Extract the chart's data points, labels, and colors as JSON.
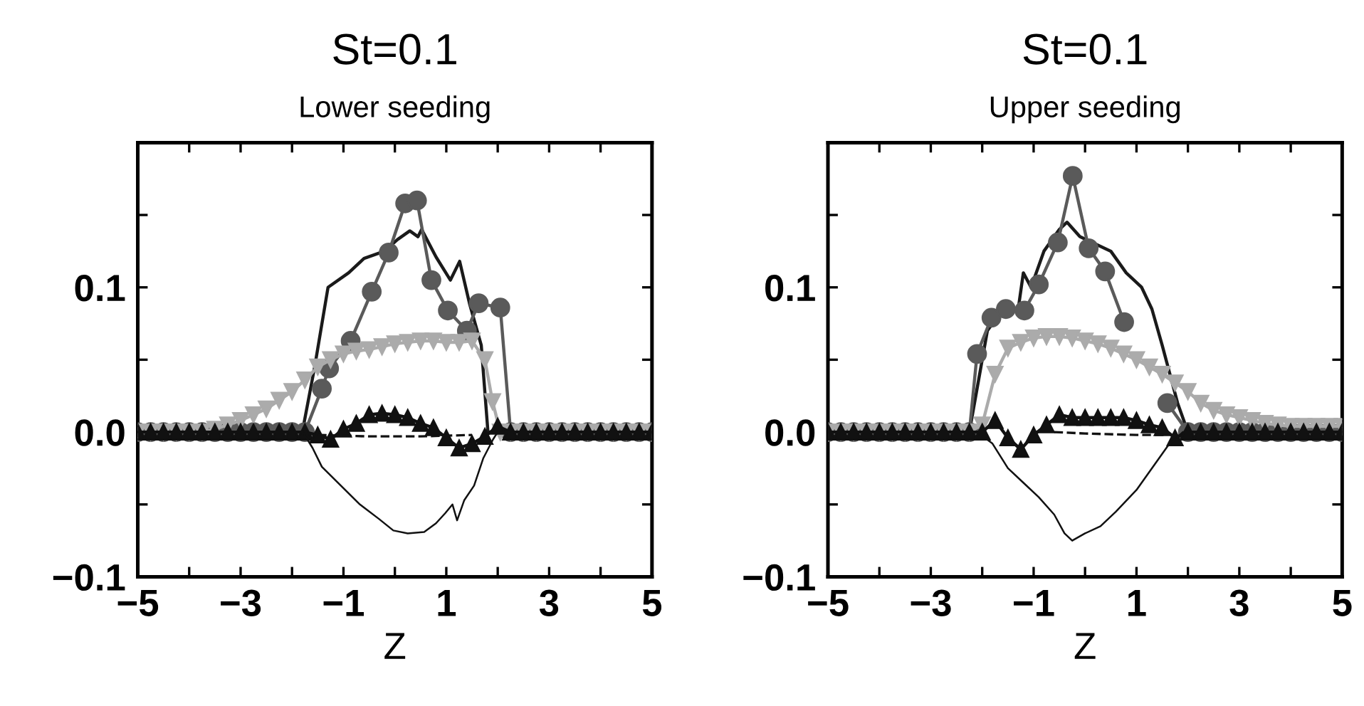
{
  "chart_data": [
    {
      "type": "line",
      "title": "St=0.1",
      "subtitle": "Lower seeding",
      "xlabel": "Z",
      "xlim": [
        -5,
        5
      ],
      "ylim": [
        -0.1,
        0.2
      ],
      "xticks": [
        {
          "value": -5,
          "label": "−5"
        },
        {
          "value": -4,
          "label": null
        },
        {
          "value": -3,
          "label": "−3"
        },
        {
          "value": -2,
          "label": null
        },
        {
          "value": -1,
          "label": "−1"
        },
        {
          "value": 0,
          "label": null
        },
        {
          "value": 1,
          "label": "1"
        },
        {
          "value": 2,
          "label": null
        },
        {
          "value": 3,
          "label": "3"
        },
        {
          "value": 4,
          "label": null
        },
        {
          "value": 5,
          "label": "5"
        }
      ],
      "yticks": [
        {
          "value": -0.1,
          "label": "−0.1"
        },
        {
          "value": -0.05,
          "label": null
        },
        {
          "value": 0,
          "label": "0.0"
        },
        {
          "value": 0.05,
          "label": null
        },
        {
          "value": 0.1,
          "label": "0.1"
        },
        {
          "value": 0.15,
          "label": null
        }
      ],
      "grid": false,
      "legend": false,
      "series": [
        {
          "color": "#1a1a1a",
          "marker": "none",
          "line_style": "solid",
          "x": [
            -5,
            -1.8,
            -1.56,
            -1.3,
            -0.9,
            -0.6,
            -0.2,
            0.05,
            0.29,
            0.45,
            0.52,
            0.8,
            1.08,
            1.26,
            1.45,
            1.68,
            1.81,
            5
          ],
          "values": [
            0,
            0,
            0.045,
            0.1,
            0.11,
            0.12,
            0.125,
            0.133,
            0.139,
            0.135,
            0.14,
            0.121,
            0.105,
            0.118,
            0.089,
            0.06,
            0,
            0
          ]
        },
        {
          "color": "#5a5a5a",
          "marker": "circle",
          "line_style": "solid",
          "x": [
            -5,
            -4.75,
            -4.5,
            -4.25,
            -4,
            -3.75,
            -3.5,
            -3.25,
            -3,
            -2.75,
            -2.5,
            -2.25,
            -2,
            -1.75,
            -1.42,
            -1.28,
            -0.86,
            -0.45,
            -0.12,
            0.2,
            0.43,
            0.71,
            1.03,
            1.4,
            1.63,
            2.05,
            2.25,
            2.5,
            2.75,
            3,
            3.25,
            3.5,
            3.75,
            4,
            4.25,
            4.5,
            4.75,
            5
          ],
          "values": [
            0,
            0,
            0,
            0,
            0,
            0,
            0,
            0,
            0,
            0,
            0,
            0,
            0,
            0,
            0.03,
            0.044,
            0.063,
            0.097,
            0.124,
            0.158,
            0.16,
            0.105,
            0.084,
            0.07,
            0.089,
            0.086,
            0,
            0,
            0,
            0,
            0,
            0,
            0,
            0,
            0,
            0,
            0,
            0
          ]
        },
        {
          "color": "#ababab",
          "marker": "triangle_down",
          "line_style": "solid",
          "x": [
            -5,
            -4.75,
            -4.5,
            -4.25,
            -4,
            -3.75,
            -3.5,
            -3.25,
            -3,
            -2.75,
            -2.5,
            -2.25,
            -2,
            -1.75,
            -1.5,
            -1.25,
            -1,
            -0.75,
            -0.5,
            -0.25,
            0,
            0.25,
            0.5,
            0.75,
            1,
            1.25,
            1.5,
            1.75,
            1.9,
            2.05,
            2.25,
            2.5,
            2.75,
            3,
            3.25,
            3.5,
            3.75,
            4,
            4.25,
            4.5,
            4.75,
            5
          ],
          "values": [
            0,
            0,
            0,
            0,
            0,
            0,
            0.002,
            0.005,
            0.008,
            0.012,
            0.016,
            0.022,
            0.028,
            0.036,
            0.045,
            0.05,
            0.054,
            0.056,
            0.057,
            0.059,
            0.061,
            0.062,
            0.063,
            0.063,
            0.062,
            0.062,
            0.063,
            0.05,
            0.021,
            0,
            0,
            0,
            0,
            0,
            0,
            0,
            0,
            0,
            0,
            0,
            0,
            0
          ]
        },
        {
          "color": "#111111",
          "marker": "triangle",
          "line_style": "solid",
          "x": [
            -5,
            -4.75,
            -4.5,
            -4.25,
            -4,
            -3.75,
            -3.5,
            -3.25,
            -3,
            -2.75,
            -2.5,
            -2.25,
            -2,
            -1.75,
            -1.5,
            -1.25,
            -1,
            -0.75,
            -0.5,
            -0.25,
            0,
            0.25,
            0.5,
            0.75,
            1,
            1.25,
            1.5,
            1.75,
            2,
            2.25,
            2.5,
            2.75,
            3,
            3.25,
            3.5,
            3.75,
            4,
            4.25,
            4.5,
            4.75,
            5
          ],
          "values": [
            0,
            0,
            0,
            0,
            0,
            0,
            0,
            0,
            0,
            0,
            0,
            0,
            0,
            0,
            -0.002,
            -0.005,
            0.002,
            0.006,
            0.012,
            0.013,
            0.012,
            0.01,
            0.006,
            0.003,
            -0.004,
            -0.011,
            -0.008,
            -0.003,
            0.004,
            0,
            0,
            0,
            0,
            0,
            0,
            0,
            0,
            0,
            0,
            0,
            0
          ]
        },
        {
          "color": "#111111",
          "marker": "none",
          "line_style": "dashed",
          "x": [
            -1.5,
            -0.5,
            0.5,
            1.5
          ],
          "values": [
            -0.002,
            -0.003,
            -0.003,
            -0.002
          ]
        },
        {
          "color": "#111111",
          "marker": "none",
          "line_style": "solid",
          "x": [
            -5,
            -1.79,
            -1.6,
            -1.42,
            -1.05,
            -0.68,
            -0.31,
            -0.03,
            0.25,
            0.57,
            0.8,
            0.98,
            1.12,
            1.21,
            1.35,
            1.54,
            1.72,
            1.91,
            2.0,
            5
          ],
          "values": [
            0,
            0,
            -0.011,
            -0.024,
            -0.037,
            -0.05,
            -0.06,
            -0.068,
            -0.07,
            -0.069,
            -0.063,
            -0.056,
            -0.05,
            -0.061,
            -0.047,
            -0.037,
            -0.018,
            -0.005,
            0,
            0
          ]
        }
      ]
    },
    {
      "type": "line",
      "title": "St=0.1",
      "subtitle": "Upper seeding",
      "xlabel": "Z",
      "xlim": [
        -5,
        5
      ],
      "ylim": [
        -0.1,
        0.2
      ],
      "xticks": [
        {
          "value": -5,
          "label": "−5"
        },
        {
          "value": -4,
          "label": null
        },
        {
          "value": -3,
          "label": "−3"
        },
        {
          "value": -2,
          "label": null
        },
        {
          "value": -1,
          "label": "−1"
        },
        {
          "value": 0,
          "label": null
        },
        {
          "value": 1,
          "label": "1"
        },
        {
          "value": 2,
          "label": null
        },
        {
          "value": 3,
          "label": "3"
        },
        {
          "value": 4,
          "label": null
        },
        {
          "value": 5,
          "label": "5"
        }
      ],
      "yticks": [
        {
          "value": -0.1,
          "label": "−0.1"
        },
        {
          "value": -0.05,
          "label": null
        },
        {
          "value": 0,
          "label": "0.0"
        },
        {
          "value": 0.05,
          "label": null
        },
        {
          "value": 0.1,
          "label": "0.1"
        },
        {
          "value": 0.15,
          "label": null
        }
      ],
      "grid": false,
      "legend": false,
      "series": [
        {
          "color": "#1a1a1a",
          "marker": "none",
          "line_style": "solid",
          "x": [
            -5,
            -2.25,
            -1.9,
            -1.6,
            -1.3,
            -1.2,
            -1.05,
            -0.8,
            -0.5,
            -0.35,
            -0.1,
            0.2,
            0.5,
            0.8,
            1.1,
            1.3,
            1.5,
            1.8,
            2.0,
            5
          ],
          "values": [
            0,
            0,
            0.07,
            0.085,
            0.085,
            0.11,
            0.1,
            0.125,
            0.14,
            0.145,
            0.135,
            0.13,
            0.125,
            0.11,
            0.1,
            0.085,
            0.06,
            0.02,
            0,
            0
          ]
        },
        {
          "color": "#5a5a5a",
          "marker": "circle",
          "line_style": "solid",
          "x": [
            -5,
            -4.75,
            -4.5,
            -4.25,
            -4,
            -3.75,
            -3.5,
            -3.25,
            -3,
            -2.75,
            -2.5,
            -2.25,
            -2.1,
            -1.82,
            -1.54,
            -1.18,
            -0.9,
            -0.53,
            -0.24,
            0.07,
            0.39,
            0.76,
            1.2,
            1.6,
            2.0,
            2.25,
            2.5,
            2.75,
            3,
            3.25,
            3.5,
            3.75,
            4,
            4.25,
            4.5,
            4.75,
            5
          ],
          "values": [
            0,
            0,
            0,
            0,
            0,
            0,
            0,
            0,
            0,
            0,
            0,
            0,
            0.054,
            0.079,
            0.085,
            0.084,
            0.102,
            0.131,
            0.177,
            0.127,
            0.111,
            0.076,
            null,
            0.02,
            0,
            0,
            0,
            0,
            0,
            0,
            0,
            0,
            0,
            0,
            0,
            0,
            0
          ]
        },
        {
          "color": "#ababab",
          "marker": "triangle_down",
          "line_style": "solid",
          "x": [
            -5,
            -4.75,
            -4.5,
            -4.25,
            -4,
            -3.75,
            -3.5,
            -3.25,
            -3,
            -2.75,
            -2.5,
            -2.25,
            -2,
            -1.75,
            -1.5,
            -1.25,
            -1,
            -0.75,
            -0.5,
            -0.25,
            0,
            0.25,
            0.5,
            0.75,
            1,
            1.25,
            1.5,
            1.75,
            2,
            2.25,
            2.5,
            2.75,
            3,
            3.25,
            3.5,
            3.75,
            4,
            4.25,
            4.5,
            4.75,
            5
          ],
          "values": [
            0,
            0,
            0,
            0,
            0,
            0,
            0,
            0,
            0,
            0,
            0,
            0,
            0.005,
            0.04,
            0.058,
            0.062,
            0.065,
            0.066,
            0.066,
            0.065,
            0.063,
            0.061,
            0.058,
            0.054,
            0.05,
            0.045,
            0.04,
            0.034,
            0.028,
            0.02,
            0.015,
            0.012,
            0.01,
            0.008,
            0.006,
            0.005,
            0.004,
            0.004,
            0.004,
            0.004,
            0.004
          ]
        },
        {
          "color": "#111111",
          "marker": "triangle",
          "line_style": "solid",
          "x": [
            -5,
            -4.75,
            -4.5,
            -4.25,
            -4,
            -3.75,
            -3.5,
            -3.25,
            -3,
            -2.75,
            -2.5,
            -2.25,
            -2,
            -1.75,
            -1.5,
            -1.25,
            -1,
            -0.75,
            -0.5,
            -0.25,
            0,
            0.25,
            0.5,
            0.75,
            1,
            1.25,
            1.5,
            1.75,
            2,
            2.25,
            2.5,
            2.75,
            3,
            3.25,
            3.5,
            3.75,
            4,
            4.25,
            4.5,
            4.75,
            5
          ],
          "values": [
            0,
            0,
            0,
            0,
            0,
            0,
            0,
            0,
            0,
            0,
            0,
            0,
            0,
            0.008,
            -0.004,
            -0.012,
            -0.002,
            0.005,
            0.012,
            0.01,
            0.01,
            0.01,
            0.01,
            0.01,
            0.008,
            0.005,
            0.003,
            -0.004,
            0,
            0,
            0,
            0,
            0,
            0,
            0,
            0,
            0,
            0,
            0,
            0,
            0
          ]
        },
        {
          "color": "#111111",
          "marker": "none",
          "line_style": "dashed",
          "x": [
            -0.6,
            0,
            1.0,
            1.6
          ],
          "values": [
            0,
            -0.001,
            -0.002,
            -0.002
          ]
        },
        {
          "color": "#111111",
          "marker": "none",
          "line_style": "solid",
          "x": [
            -5,
            -2.1,
            -1.8,
            -1.5,
            -1.2,
            -0.9,
            -0.6,
            -0.4,
            -0.25,
            0,
            0.3,
            0.6,
            1.0,
            1.3,
            1.6,
            1.9,
            5
          ],
          "values": [
            0,
            0,
            -0.008,
            -0.025,
            -0.035,
            -0.045,
            -0.057,
            -0.07,
            -0.075,
            -0.07,
            -0.065,
            -0.055,
            -0.04,
            -0.025,
            -0.01,
            0,
            0
          ]
        }
      ]
    }
  ]
}
